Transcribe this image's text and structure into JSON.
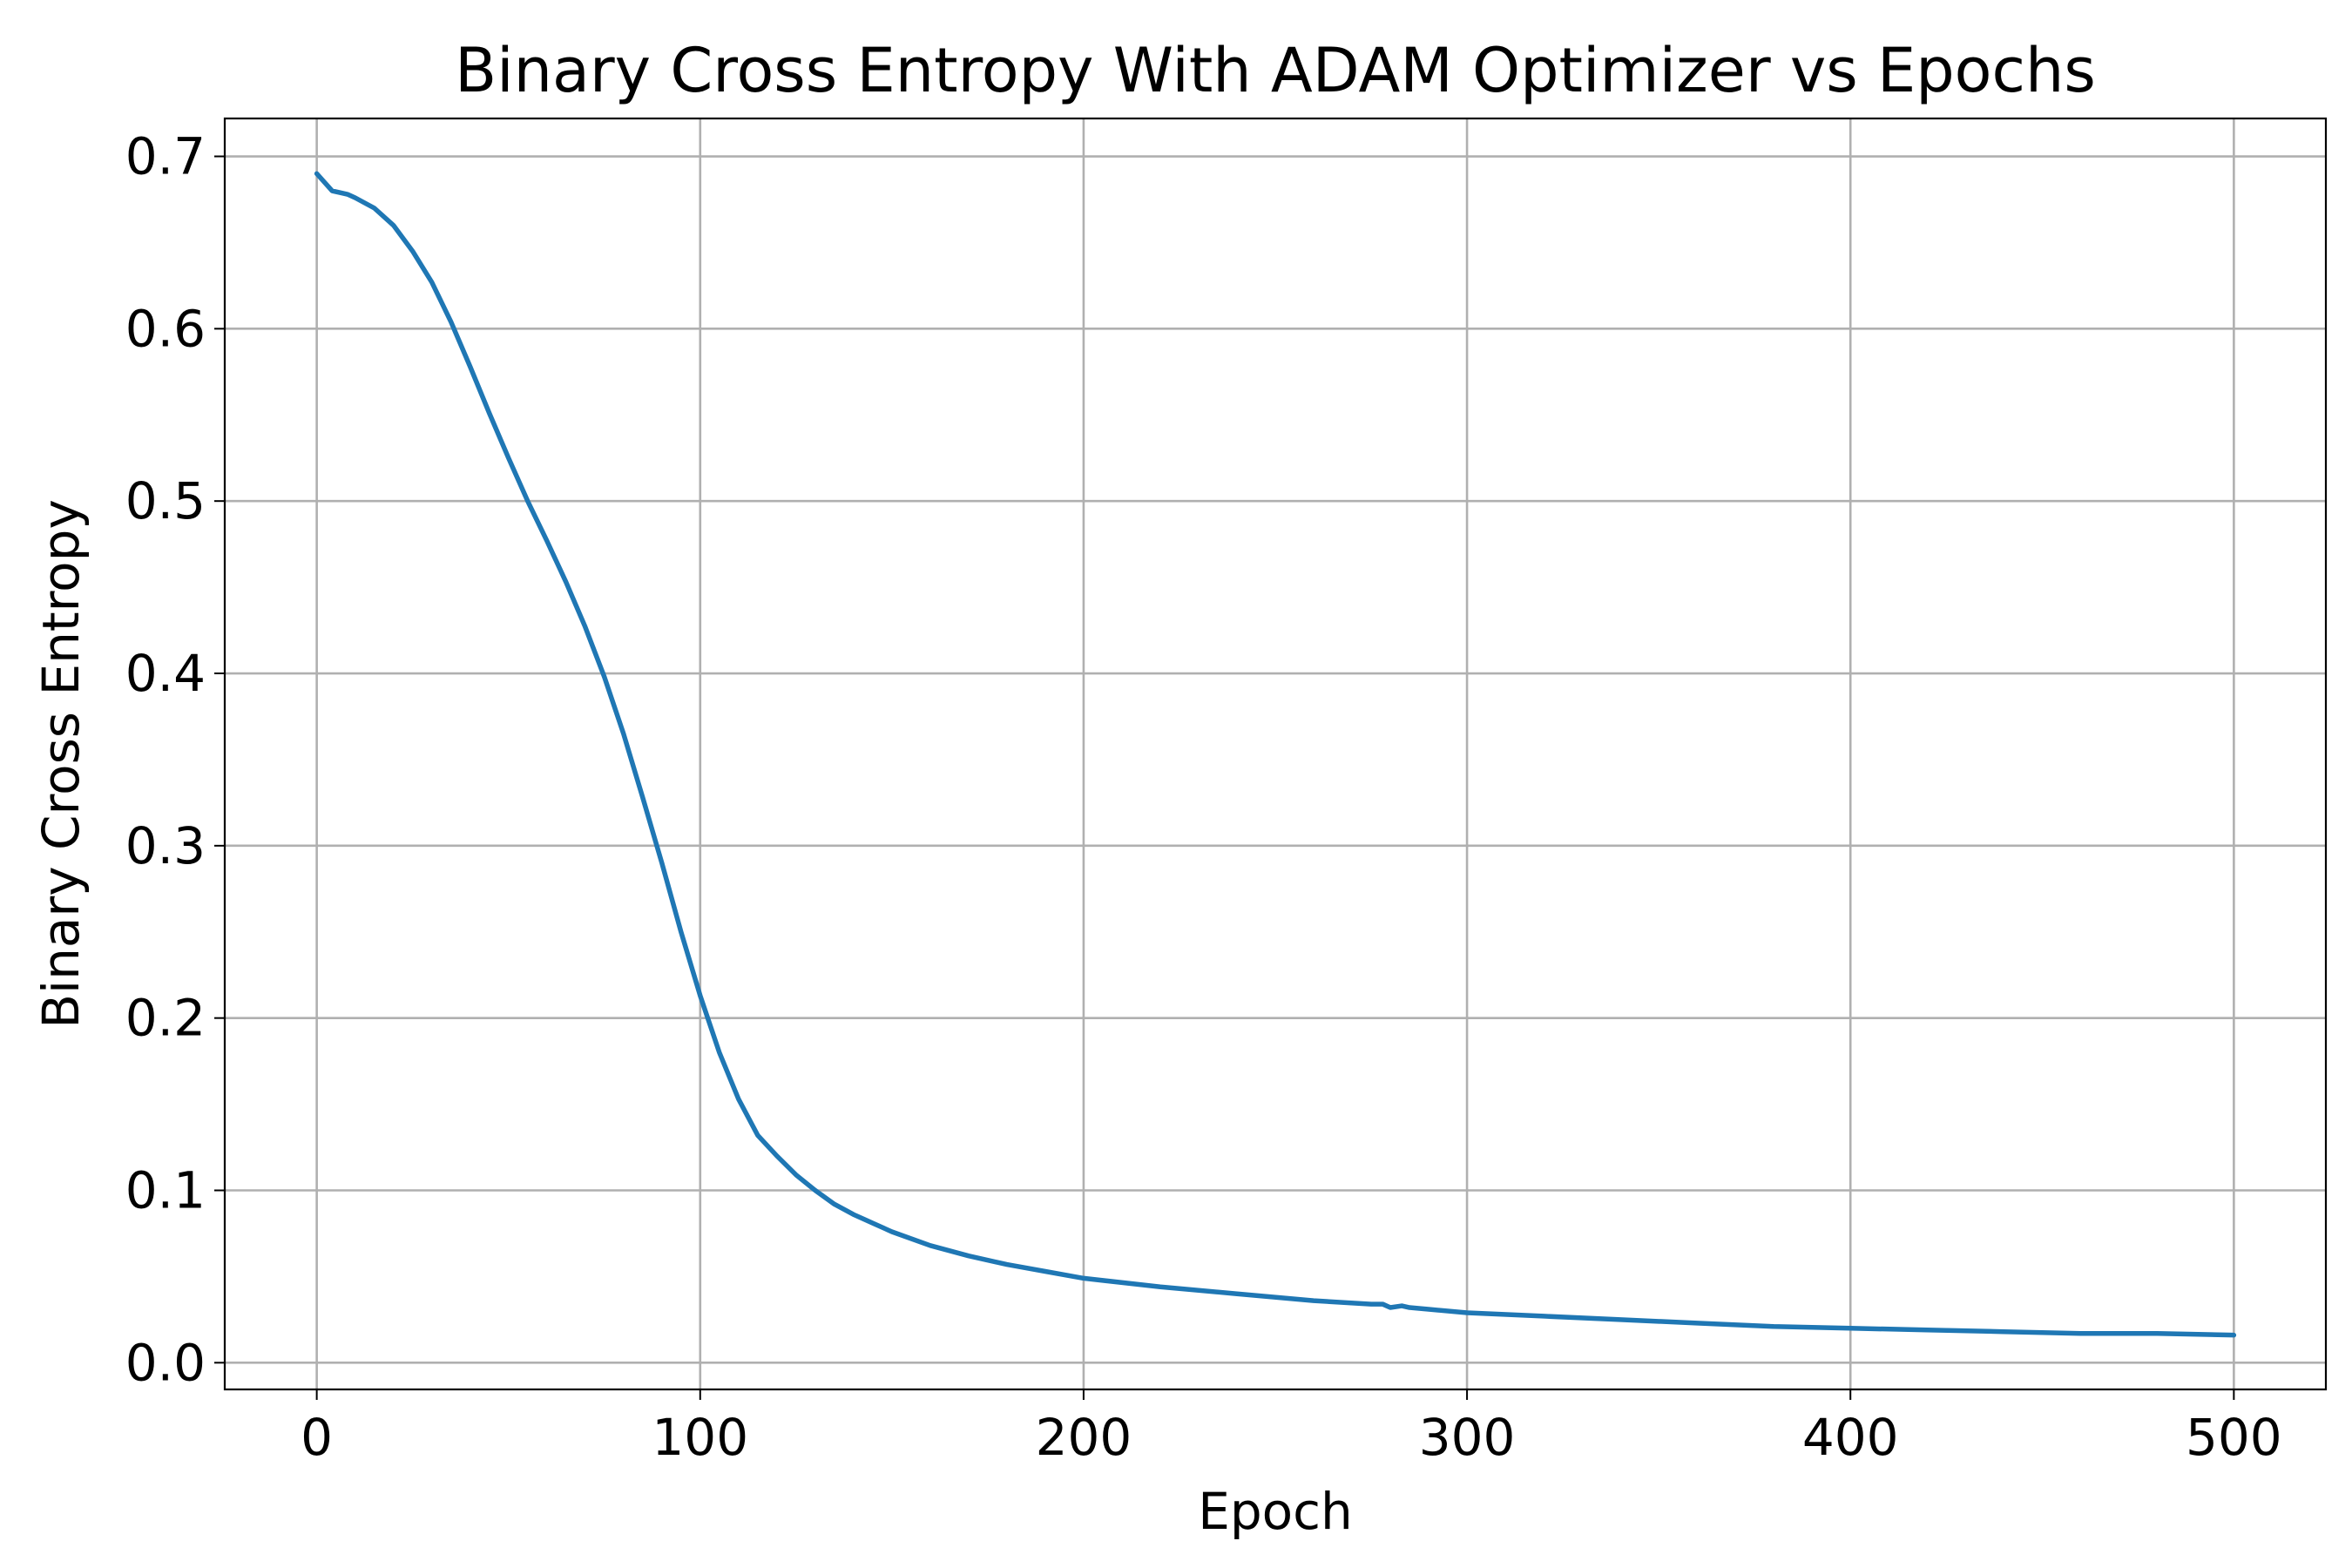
{
  "chart_data": {
    "type": "line",
    "title": "Binary Cross Entropy With ADAM Optimizer vs Epochs",
    "xlabel": "Epoch",
    "ylabel": "Binary Cross Entropy",
    "xlim": [
      -24,
      524
    ],
    "ylim": [
      -0.0155,
      0.722
    ],
    "x_ticks": [
      0,
      100,
      200,
      300,
      400,
      500
    ],
    "x_tick_labels": [
      "0",
      "100",
      "200",
      "300",
      "400",
      "500"
    ],
    "y_ticks": [
      0.0,
      0.1,
      0.2,
      0.3,
      0.4,
      0.5,
      0.6,
      0.7
    ],
    "y_tick_labels": [
      "0.0",
      "0.1",
      "0.2",
      "0.3",
      "0.4",
      "0.5",
      "0.6",
      "0.7"
    ],
    "grid": true,
    "legend": "none",
    "series": [
      {
        "color": "#1f77b4",
        "x": [
          0,
          2,
          4,
          6,
          8,
          10,
          15,
          20,
          25,
          30,
          35,
          40,
          45,
          50,
          55,
          60,
          65,
          70,
          75,
          80,
          85,
          90,
          95,
          100,
          105,
          110,
          115,
          120,
          125,
          130,
          135,
          140,
          145,
          150,
          160,
          170,
          180,
          190,
          200,
          220,
          240,
          260,
          275,
          278,
          280,
          283,
          285,
          290,
          300,
          320,
          340,
          360,
          380,
          400,
          420,
          440,
          460,
          480,
          500
        ],
        "y": [
          0.69,
          0.685,
          0.68,
          0.679,
          0.678,
          0.676,
          0.67,
          0.66,
          0.645,
          0.627,
          0.604,
          0.578,
          0.551,
          0.525,
          0.5,
          0.477,
          0.453,
          0.427,
          0.398,
          0.365,
          0.328,
          0.29,
          0.25,
          0.213,
          0.18,
          0.153,
          0.132,
          0.12,
          0.109,
          0.1,
          0.092,
          0.086,
          0.081,
          0.076,
          0.068,
          0.062,
          0.057,
          0.053,
          0.049,
          0.044,
          0.04,
          0.036,
          0.034,
          0.034,
          0.032,
          0.033,
          0.032,
          0.031,
          0.029,
          0.027,
          0.025,
          0.023,
          0.021,
          0.02,
          0.019,
          0.018,
          0.017,
          0.017,
          0.016
        ]
      }
    ]
  }
}
